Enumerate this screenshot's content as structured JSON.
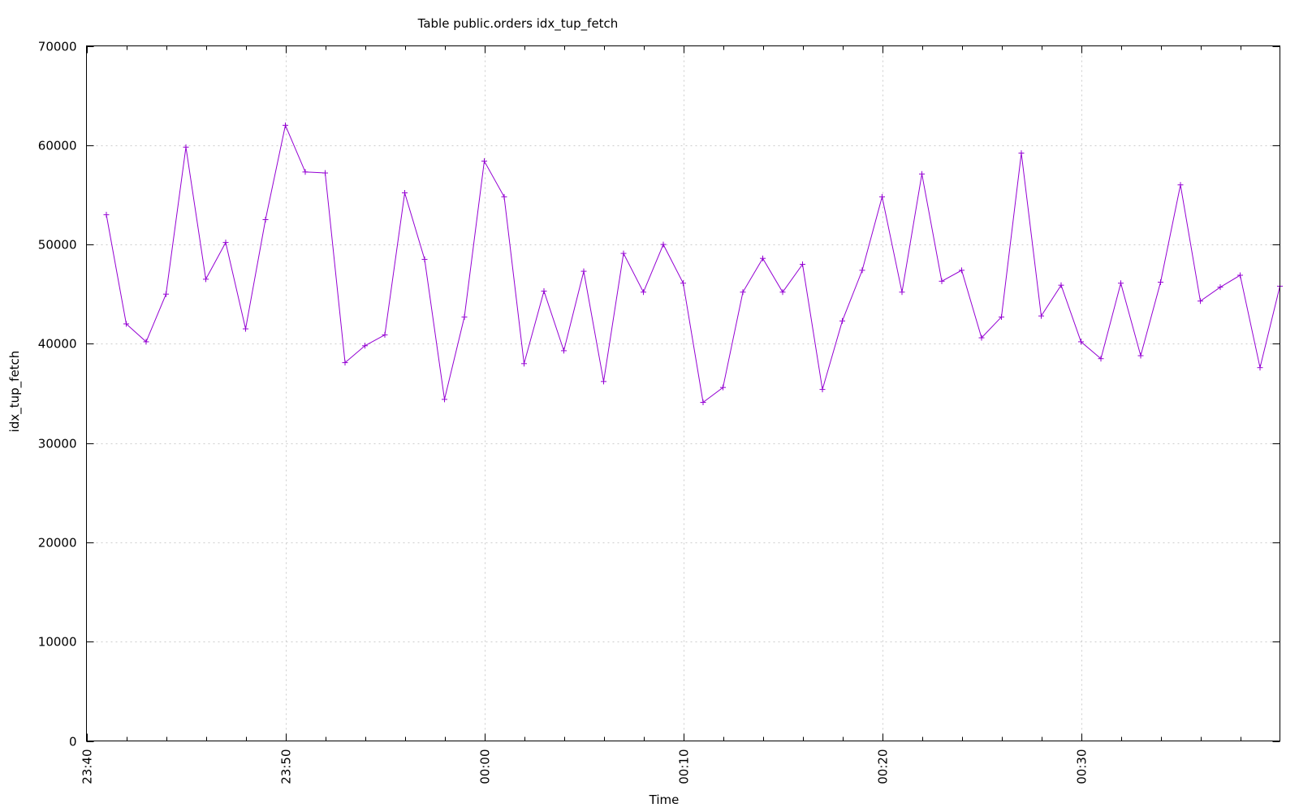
{
  "chart_data": {
    "type": "line",
    "title": "Table public.orders idx_tup_fetch",
    "xlabel": "Time",
    "ylabel": "idx_tup_fetch",
    "ylim": [
      0,
      70000
    ],
    "y_ticks": [
      0,
      10000,
      20000,
      30000,
      40000,
      50000,
      60000,
      70000
    ],
    "x_ticks": [
      "23:40",
      "23:50",
      "00:00",
      "00:10",
      "00:20",
      "00:30"
    ],
    "x_range": [
      "23:40",
      "00:40"
    ],
    "grid": true,
    "legend": "none",
    "line_color": "#9400d3",
    "marker": "plus",
    "series": [
      {
        "x": [
          "23:41",
          "23:42",
          "23:43",
          "23:44",
          "23:45",
          "23:46",
          "23:47",
          "23:48",
          "23:49",
          "23:50",
          "23:51",
          "23:52",
          "23:53",
          "23:54",
          "23:55",
          "23:56",
          "23:57",
          "23:58",
          "23:59",
          "00:00",
          "00:01",
          "00:02",
          "00:03",
          "00:04",
          "00:05",
          "00:06",
          "00:07",
          "00:08",
          "00:09",
          "00:10",
          "00:11",
          "00:12",
          "00:13",
          "00:14",
          "00:15",
          "00:16",
          "00:17",
          "00:18",
          "00:19",
          "00:20",
          "00:21",
          "00:22",
          "00:23",
          "00:24",
          "00:25",
          "00:26",
          "00:27",
          "00:28",
          "00:29",
          "00:30",
          "00:31",
          "00:32",
          "00:33",
          "00:34",
          "00:35",
          "00:36",
          "00:37",
          "00:38",
          "00:39",
          "00:40"
        ],
        "values": [
          53000,
          42000,
          40200,
          45000,
          59800,
          46500,
          50200,
          41500,
          52500,
          62000,
          57300,
          57200,
          38100,
          39800,
          40900,
          55200,
          48500,
          34400,
          42700,
          58400,
          54800,
          38000,
          45300,
          39300,
          47300,
          36200,
          49100,
          45200,
          50000,
          46100,
          34100,
          35600,
          45200,
          48600,
          45200,
          48000,
          35400,
          42300,
          47400,
          54800,
          45200,
          57100,
          46300,
          47400,
          40600,
          42700,
          59200,
          42800,
          45900,
          40200,
          38500,
          46100,
          38800,
          46200,
          56000,
          44300,
          45700,
          46900,
          37600,
          45800
        ]
      }
    ]
  }
}
